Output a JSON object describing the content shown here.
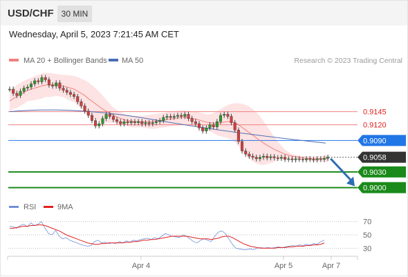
{
  "header": {
    "symbol": "USD/CHF",
    "interval": "30 MIN",
    "datetime": "Wednesday, April 5, 2023 7:21:45 AM CET"
  },
  "colors": {
    "ma20": "#f08080",
    "bollinger_fill": "#fde3e3",
    "ma50": "#4a6db5",
    "level_line": "#f08080",
    "pivot": "#2176e6",
    "current": "#333333",
    "support": "#1a8a1a",
    "arrow": "#2e6db4",
    "rsi": "#6e8fd8",
    "rsi_ma": "#e02020"
  },
  "chart_data": [
    {
      "type": "candlestick",
      "title": "",
      "legend": [
        {
          "name": "MA 20 + Bollinger Bands",
          "color": "#f08080"
        },
        {
          "name": "MA 50",
          "color": "#4a6db5"
        }
      ],
      "legend_placement": "top-left",
      "credit": "Research © 2023 Trading Central",
      "x_ticks": [
        "Apr 4",
        "Apr 5",
        "Apr 7"
      ],
      "y_levels": [
        {
          "value": 0.9145,
          "label": "0.9145",
          "style": "resistance"
        },
        {
          "value": 0.912,
          "label": "0.9120",
          "style": "resistance"
        },
        {
          "value": 0.909,
          "label": "0.9090",
          "style": "pivot"
        },
        {
          "value": 0.9058,
          "label": "0.9058",
          "style": "current"
        },
        {
          "value": 0.903,
          "label": "0.9030",
          "style": "support"
        },
        {
          "value": 0.9,
          "label": "0.9000",
          "style": "support"
        }
      ],
      "ylim": [
        0.8985,
        0.9225
      ],
      "close": [
        0.9188,
        0.918,
        0.9176,
        0.9184,
        0.919,
        0.9192,
        0.9198,
        0.9204,
        0.9202,
        0.921,
        0.9206,
        0.9196,
        0.9194,
        0.92,
        0.919,
        0.9186,
        0.9182,
        0.9178,
        0.9174,
        0.9164,
        0.9156,
        0.9146,
        0.9138,
        0.9128,
        0.9118,
        0.9122,
        0.9132,
        0.914,
        0.9136,
        0.913,
        0.9126,
        0.9122,
        0.9126,
        0.9124,
        0.9126,
        0.9124,
        0.9126,
        0.9122,
        0.9124,
        0.9122,
        0.9124,
        0.9126,
        0.9128,
        0.9134,
        0.9136,
        0.9134,
        0.9136,
        0.9138,
        0.9136,
        0.914,
        0.9132,
        0.9126,
        0.9122,
        0.9114,
        0.9108,
        0.9114,
        0.912,
        0.9116,
        0.9126,
        0.9138,
        0.914,
        0.9136,
        0.9124,
        0.911,
        0.9088,
        0.907,
        0.9064,
        0.906,
        0.9058,
        0.9055,
        0.9058,
        0.906,
        0.9057,
        0.9059,
        0.9057,
        0.9056,
        0.9058,
        0.9054,
        0.9055,
        0.9053,
        0.9055,
        0.9054,
        0.9053,
        0.9055,
        0.9054,
        0.9053,
        0.9055,
        0.9054,
        0.9056,
        0.9058
      ],
      "ma20": [
        0.9165,
        0.917,
        0.9174,
        0.9178,
        0.9182,
        0.9186,
        0.9188,
        0.919,
        0.9192,
        0.9194,
        0.9196,
        0.9196,
        0.9196,
        0.9196,
        0.9195,
        0.9194,
        0.9192,
        0.919,
        0.9188,
        0.9184,
        0.918,
        0.9176,
        0.917,
        0.9165,
        0.916,
        0.9155,
        0.915,
        0.9146,
        0.9142,
        0.9138,
        0.9135,
        0.9132,
        0.913,
        0.9128,
        0.9127,
        0.9126,
        0.9126,
        0.9126,
        0.9126,
        0.9126,
        0.9126,
        0.9127,
        0.9128,
        0.9129,
        0.913,
        0.9131,
        0.9132,
        0.9133,
        0.9134,
        0.9134,
        0.9133,
        0.9132,
        0.9131,
        0.9129,
        0.9127,
        0.9125,
        0.9124,
        0.9123,
        0.9123,
        0.9124,
        0.9125,
        0.9126,
        0.9126,
        0.9124,
        0.912,
        0.9115,
        0.911,
        0.9105,
        0.91,
        0.9095,
        0.909,
        0.9085,
        0.9081,
        0.9077,
        0.9073,
        0.907,
        0.9067,
        0.9064,
        0.9062,
        0.906,
        0.9059,
        0.9058,
        0.9057,
        0.9056,
        0.9056,
        0.9055,
        0.9055,
        0.9055,
        0.9055,
        0.9055
      ],
      "bb_upper": [
        0.9185,
        0.919,
        0.9196,
        0.92,
        0.9204,
        0.9207,
        0.921,
        0.9213,
        0.9215,
        0.9218,
        0.9219,
        0.9219,
        0.9218,
        0.9217,
        0.9216,
        0.9215,
        0.9215,
        0.9214,
        0.9213,
        0.9211,
        0.9208,
        0.9205,
        0.9201,
        0.9196,
        0.919,
        0.9183,
        0.9176,
        0.9168,
        0.916,
        0.9153,
        0.9148,
        0.9144,
        0.9141,
        0.9139,
        0.9138,
        0.9137,
        0.9137,
        0.9137,
        0.9138,
        0.9139,
        0.914,
        0.9141,
        0.9142,
        0.9143,
        0.9144,
        0.9145,
        0.9146,
        0.9147,
        0.9148,
        0.9148,
        0.9147,
        0.9146,
        0.9145,
        0.9144,
        0.9142,
        0.914,
        0.914,
        0.9142,
        0.9146,
        0.915,
        0.9154,
        0.9158,
        0.916,
        0.9161,
        0.9161,
        0.916,
        0.9158,
        0.9155,
        0.915,
        0.9144,
        0.9136,
        0.9127,
        0.9117,
        0.9107,
        0.9097,
        0.9088,
        0.908,
        0.9073,
        0.9068,
        0.9064,
        0.9062,
        0.9061,
        0.906,
        0.906,
        0.906,
        0.906,
        0.906,
        0.906,
        0.9061,
        0.9062
      ],
      "bb_lower": [
        0.9145,
        0.915,
        0.9152,
        0.9156,
        0.916,
        0.9165,
        0.9166,
        0.9167,
        0.9169,
        0.917,
        0.9173,
        0.9173,
        0.9174,
        0.9175,
        0.9174,
        0.9173,
        0.9169,
        0.9166,
        0.9163,
        0.9157,
        0.9152,
        0.9147,
        0.9139,
        0.9134,
        0.913,
        0.9127,
        0.9124,
        0.9124,
        0.9124,
        0.9123,
        0.9122,
        0.912,
        0.9119,
        0.9117,
        0.9116,
        0.9115,
        0.9115,
        0.9115,
        0.9114,
        0.9113,
        0.9112,
        0.9113,
        0.9114,
        0.9115,
        0.9116,
        0.9117,
        0.9118,
        0.9119,
        0.912,
        0.912,
        0.9119,
        0.9118,
        0.9117,
        0.9114,
        0.9112,
        0.911,
        0.9108,
        0.9104,
        0.91,
        0.9098,
        0.9096,
        0.9094,
        0.9092,
        0.9087,
        0.9079,
        0.907,
        0.9062,
        0.9055,
        0.905,
        0.9046,
        0.9044,
        0.9043,
        0.9045,
        0.9047,
        0.9049,
        0.9052,
        0.9054,
        0.9055,
        0.9056,
        0.9056,
        0.9056,
        0.9055,
        0.9054,
        0.9052,
        0.9052,
        0.905,
        0.905,
        0.905,
        0.9049,
        0.9048
      ],
      "ma50_start": 0.9145,
      "ma50_peak": 0.9156,
      "ma50_end": 0.9085,
      "forecast": {
        "from": 0.9058,
        "to": 0.9
      }
    },
    {
      "type": "line",
      "title": "",
      "legend": [
        {
          "name": "RSI",
          "color": "#6e8fd8"
        },
        {
          "name": "9MA",
          "color": "#e02020"
        }
      ],
      "y_ticks": [
        70,
        50,
        30
      ],
      "ylim": [
        20,
        78
      ],
      "rsi": [
        63,
        62,
        60,
        64,
        66,
        62,
        68,
        64,
        66,
        70,
        60,
        52,
        50,
        57,
        48,
        44,
        46,
        42,
        40,
        38,
        36,
        34,
        33,
        34,
        40,
        42,
        38,
        39,
        37,
        38,
        37,
        40,
        38,
        41,
        39,
        42,
        41,
        43,
        44,
        45,
        43,
        46,
        44,
        48,
        52,
        50,
        48,
        47,
        46,
        50,
        48,
        44,
        40,
        38,
        42,
        44,
        42,
        40,
        48,
        54,
        56,
        52,
        44,
        36,
        30,
        29,
        28,
        28,
        29,
        28,
        30,
        31,
        30,
        31,
        30,
        31,
        32,
        31,
        32,
        33,
        34,
        33,
        35,
        34,
        36,
        35,
        37,
        36,
        40,
        42
      ],
      "ma9": [
        60,
        60,
        61,
        62,
        63,
        63,
        64,
        64,
        65,
        65,
        64,
        62,
        60,
        58,
        56,
        53,
        50,
        48,
        46,
        44,
        42,
        40,
        38,
        37,
        36,
        36,
        37,
        37,
        38,
        38,
        38,
        38,
        38,
        39,
        39,
        40,
        40,
        41,
        42,
        42,
        43,
        43,
        44,
        45,
        46,
        47,
        48,
        48,
        48,
        48,
        48,
        47,
        46,
        45,
        44,
        44,
        44,
        43,
        44,
        45,
        47,
        48,
        48,
        46,
        43,
        40,
        37,
        35,
        33,
        32,
        31,
        30,
        30,
        30,
        30,
        30,
        31,
        31,
        31,
        32,
        32,
        33,
        33,
        33,
        34,
        34,
        35,
        35,
        36,
        38
      ]
    }
  ],
  "rsi_panel": {
    "ticks": [
      "70",
      "50",
      "30"
    ]
  }
}
